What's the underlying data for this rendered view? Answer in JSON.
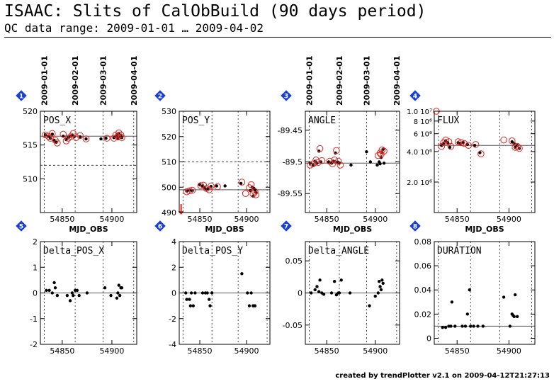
{
  "header": {
    "title": "ISAAC: Slits of CalObBuild (90 days period)",
    "subtitle": "QC data range: 2009-01-01 … 2009-04-02"
  },
  "footer": {
    "text": "created by trendPlotter v2.1 on 2009-04-12T21:27:13"
  },
  "colors": {
    "badge": "#1a3fd6",
    "outlier": "#e0261e",
    "frame": "#000000"
  },
  "chart_data": [
    {
      "type": "scatter",
      "badge": "1",
      "title": "POS_X",
      "xlabel": "MJD_OBS",
      "xlim": [
        54828,
        54925
      ],
      "ylim": [
        505,
        520
      ],
      "xticks": [
        54850,
        54900
      ],
      "yticks": [
        510,
        515,
        520
      ],
      "dates": [
        "2009-01-01",
        "2009-02-01",
        "2009-03-01",
        "2009-04-01"
      ],
      "dates_mjd": [
        54832,
        54863,
        54891,
        54922
      ],
      "ref_line": 516.3,
      "thresholds": [
        512,
        520
      ],
      "points": [
        [
          54833,
          516.5
        ],
        [
          54836,
          516.3
        ],
        [
          54838,
          516.0
        ],
        [
          54840,
          516.6
        ],
        [
          54842,
          515.7
        ],
        [
          54844,
          515.4
        ],
        [
          54851,
          516.3
        ],
        [
          54854,
          515.8
        ],
        [
          54856,
          516.1
        ],
        [
          54858,
          516.3
        ],
        [
          54860,
          516.4
        ],
        [
          54862,
          516.2
        ],
        [
          54868,
          516.2
        ],
        [
          54874,
          515.9
        ],
        [
          54889,
          515.9
        ],
        [
          54894,
          516.0
        ],
        [
          54902,
          516.1
        ],
        [
          54904,
          516.3
        ],
        [
          54905,
          516.5
        ],
        [
          54906,
          516.0
        ],
        [
          54907,
          516.7
        ],
        [
          54908,
          516.3
        ],
        [
          54909,
          516.4
        ],
        [
          54910,
          516.1
        ]
      ],
      "circles": [
        [
          54833,
          516.5
        ],
        [
          54836,
          516.3
        ],
        [
          54838,
          516.0
        ],
        [
          54840,
          516.7
        ],
        [
          54843,
          515.7
        ],
        [
          54845,
          515.3
        ],
        [
          54851,
          516.6
        ],
        [
          54854,
          515.6
        ],
        [
          54856,
          516.0
        ],
        [
          54859,
          516.3
        ],
        [
          54861,
          516.7
        ],
        [
          54864,
          516.1
        ],
        [
          54868,
          516.4
        ],
        [
          54874,
          515.9
        ],
        [
          54895,
          516.0
        ],
        [
          54902,
          516.0
        ],
        [
          54904,
          516.5
        ],
        [
          54906,
          516.2
        ],
        [
          54907,
          516.8
        ],
        [
          54909,
          516.5
        ],
        [
          54910,
          516.1
        ]
      ]
    },
    {
      "type": "scatter",
      "badge": "2",
      "title": "POS_Y",
      "xlabel": "MJD_OBS",
      "xlim": [
        54828,
        54925
      ],
      "ylim": [
        490,
        530
      ],
      "xticks": [
        54850,
        54900
      ],
      "yticks": [
        490,
        500,
        510,
        520,
        530
      ],
      "dates_mjd": [
        54832,
        54863,
        54891,
        54922
      ],
      "ref_line": 499,
      "thresholds": [
        510
      ],
      "points": [
        [
          54836,
          498.5
        ],
        [
          54839,
          498.8
        ],
        [
          54842,
          498.6
        ],
        [
          54850,
          501.0
        ],
        [
          54853,
          500.5
        ],
        [
          54855,
          499.8
        ],
        [
          54857,
          499.2
        ],
        [
          54859,
          499.5
        ],
        [
          54862,
          500.3
        ],
        [
          54868,
          500.5
        ],
        [
          54877,
          500.5
        ],
        [
          54894,
          501.5
        ],
        [
          54904,
          498.7
        ],
        [
          54906,
          500.0
        ],
        [
          54907,
          496.5
        ],
        [
          54908,
          499.5
        ],
        [
          54909,
          499.0
        ],
        [
          54910,
          498.0
        ]
      ],
      "circles": [
        [
          54836,
          498.2
        ],
        [
          54839,
          498.6
        ],
        [
          54842,
          498.8
        ],
        [
          54851,
          500.6
        ],
        [
          54854,
          500.8
        ],
        [
          54857,
          499.5
        ],
        [
          54860,
          499.0
        ],
        [
          54862,
          500.5
        ],
        [
          54869,
          500.2
        ],
        [
          54895,
          502.0
        ],
        [
          54899,
          497.5
        ],
        [
          54903,
          499.8
        ],
        [
          54905,
          501.0
        ],
        [
          54907,
          497.3
        ],
        [
          54909,
          498.2
        ],
        [
          54910,
          497.0
        ]
      ],
      "arrows": [
        [
          54830,
          490
        ]
      ]
    },
    {
      "type": "scatter",
      "badge": "3",
      "title": "ANGLE",
      "xlabel": "MJD_OBS",
      "xlim": [
        54828,
        54925
      ],
      "ylim": [
        -89.58,
        -89.42
      ],
      "xticks": [
        54850,
        54900
      ],
      "yticks": [
        -89.45,
        -89.5,
        -89.55
      ],
      "dates": [
        "2009-01-01",
        "2009-02-01",
        "2009-03-01",
        "2009-04-01"
      ],
      "dates_mjd": [
        54832,
        54863,
        54891,
        54922
      ],
      "ref_line": -89.502,
      "points": [
        [
          54833,
          -89.502
        ],
        [
          54836,
          -89.505
        ],
        [
          54838,
          -89.499
        ],
        [
          54840,
          -89.502
        ],
        [
          54842,
          -89.483
        ],
        [
          54844,
          -89.5
        ],
        [
          54852,
          -89.5
        ],
        [
          54855,
          -89.502
        ],
        [
          54857,
          -89.499
        ],
        [
          54859,
          -89.486
        ],
        [
          54861,
          -89.5
        ],
        [
          54863,
          -89.502
        ],
        [
          54875,
          -89.505
        ],
        [
          54891,
          -89.484
        ],
        [
          54895,
          -89.5
        ],
        [
          54902,
          -89.505
        ],
        [
          54904,
          -89.5
        ],
        [
          54905,
          -89.503
        ],
        [
          54906,
          -89.493
        ],
        [
          54907,
          -89.485
        ],
        [
          54908,
          -89.48
        ],
        [
          54909,
          -89.502
        ]
      ],
      "circles": [
        [
          54833,
          -89.505
        ],
        [
          54836,
          -89.503
        ],
        [
          54839,
          -89.497
        ],
        [
          54841,
          -89.501
        ],
        [
          54843,
          -89.479
        ],
        [
          54845,
          -89.498
        ],
        [
          54853,
          -89.499
        ],
        [
          54856,
          -89.503
        ],
        [
          54858,
          -89.497
        ],
        [
          54860,
          -89.482
        ],
        [
          54862,
          -89.499
        ],
        [
          54864,
          -89.505
        ],
        [
          54903,
          -89.49
        ],
        [
          54905,
          -89.486
        ],
        [
          54906,
          -89.488
        ],
        [
          54907,
          -89.481
        ],
        [
          54909,
          -89.483
        ]
      ]
    },
    {
      "type": "scatter",
      "badge": "4",
      "title": "FLUX",
      "xlabel": "MJD_OBS",
      "xlim": [
        54828,
        54925
      ],
      "ylim": [
        1000000,
        10000000
      ],
      "xticks": [
        54850,
        54900
      ],
      "yticks": [
        1000000,
        2000000,
        4000000,
        6000000,
        8000000,
        10000000
      ],
      "ytick_labels": [
        "1.0 10⁷",
        "8 10⁶",
        "6 10⁶",
        "4.0 10⁶",
        "2.0 10⁶"
      ],
      "dates_mjd": [
        54832,
        54863,
        54891,
        54922
      ],
      "ref_line": 4600000,
      "points": [
        [
          54835,
          4600000
        ],
        [
          54837,
          4800000
        ],
        [
          54839,
          5100000
        ],
        [
          54841,
          4900000
        ],
        [
          54843,
          4400000
        ],
        [
          54851,
          4900000
        ],
        [
          54853,
          4800000
        ],
        [
          54856,
          4900000
        ],
        [
          54860,
          4700000
        ],
        [
          54867,
          4600000
        ],
        [
          54872,
          3900000
        ],
        [
          54903,
          5000000
        ],
        [
          54905,
          4800000
        ],
        [
          54906,
          4400000
        ],
        [
          54908,
          4600000
        ],
        [
          54910,
          4300000
        ]
      ],
      "circles": [
        [
          54835,
          4500000
        ],
        [
          54837,
          4900000
        ],
        [
          54839,
          5200000
        ],
        [
          54842,
          5000000
        ],
        [
          54844,
          4500000
        ],
        [
          54851,
          5000000
        ],
        [
          54854,
          4900000
        ],
        [
          54857,
          4800000
        ],
        [
          54861,
          4600000
        ],
        [
          54868,
          4700000
        ],
        [
          54873,
          3800000
        ],
        [
          54895,
          5200000
        ],
        [
          54903,
          5100000
        ],
        [
          54906,
          4400000
        ],
        [
          54908,
          4500000
        ],
        [
          54910,
          4300000
        ],
        [
          54830,
          10000000
        ]
      ]
    },
    {
      "type": "scatter",
      "badge": "5",
      "title": "Delta_POS_X",
      "xlim": [
        54828,
        54925
      ],
      "ylim": [
        -2,
        2
      ],
      "xticks": [
        54850,
        54900
      ],
      "yticks": [
        2,
        1,
        0,
        -1,
        -2
      ],
      "dates_mjd": [
        54832,
        54863,
        54891,
        54922
      ],
      "ref_line": 0,
      "points": [
        [
          54834,
          0.1
        ],
        [
          54837,
          0.1
        ],
        [
          54840,
          0.0
        ],
        [
          54842,
          0.4
        ],
        [
          54843,
          0.2
        ],
        [
          54845,
          -0.1
        ],
        [
          54855,
          -0.1
        ],
        [
          54858,
          -0.3
        ],
        [
          54860,
          0.0
        ],
        [
          54861,
          -0.1
        ],
        [
          54863,
          0.1
        ],
        [
          54865,
          0.1
        ],
        [
          54867,
          -0.1
        ],
        [
          54875,
          0.0
        ],
        [
          54893,
          0.2
        ],
        [
          54899,
          -0.1
        ],
        [
          54905,
          -0.2
        ],
        [
          54906,
          0.0
        ],
        [
          54907,
          0.3
        ],
        [
          54908,
          -0.1
        ],
        [
          54909,
          0.2
        ],
        [
          54910,
          0.2
        ]
      ]
    },
    {
      "type": "scatter",
      "badge": "6",
      "title": "Delta_POS_Y",
      "xlim": [
        54828,
        54925
      ],
      "ylim": [
        -4,
        4
      ],
      "xticks": [
        54850,
        54900
      ],
      "yticks": [
        4,
        2,
        0,
        -2,
        -4
      ],
      "dates_mjd": [
        54832,
        54863,
        54891,
        54922
      ],
      "ref_line": 0,
      "points": [
        [
          54835,
          0.0
        ],
        [
          54836,
          -0.5
        ],
        [
          54839,
          -0.5
        ],
        [
          54840,
          -1.0
        ],
        [
          54841,
          0.0
        ],
        [
          54843,
          -1.0
        ],
        [
          54845,
          0.0
        ],
        [
          54853,
          0.0
        ],
        [
          54856,
          0.0
        ],
        [
          54858,
          0.0
        ],
        [
          54860,
          -0.5
        ],
        [
          54861,
          -1.0
        ],
        [
          54863,
          0.0
        ],
        [
          54895,
          1.5
        ],
        [
          54901,
          0.0
        ],
        [
          54903,
          -1.0
        ],
        [
          54905,
          0.0
        ],
        [
          54907,
          -1.0
        ],
        [
          54909,
          -1.0
        ]
      ]
    },
    {
      "type": "scatter",
      "badge": "7",
      "title": "Delta_ANGLE",
      "xlim": [
        54828,
        54925
      ],
      "ylim": [
        -0.08,
        0.08
      ],
      "xticks": [
        54850,
        54900
      ],
      "yticks": [
        0.05,
        0,
        -0.05
      ],
      "dates_mjd": [
        54832,
        54863,
        54891,
        54922
      ],
      "ref_line": 0,
      "points": [
        [
          54834,
          0.0
        ],
        [
          54838,
          0.005
        ],
        [
          54840,
          0.01
        ],
        [
          54842,
          0.002
        ],
        [
          54843,
          0.02
        ],
        [
          54845,
          0.0
        ],
        [
          54847,
          -0.002
        ],
        [
          54855,
          0.0
        ],
        [
          54858,
          0.018
        ],
        [
          54860,
          -0.003
        ],
        [
          54862,
          0.0
        ],
        [
          54863,
          0.0
        ],
        [
          54865,
          0.02
        ],
        [
          54874,
          0.0
        ],
        [
          54894,
          -0.02
        ],
        [
          54900,
          -0.005
        ],
        [
          54903,
          0.0
        ],
        [
          54904,
          0.018
        ],
        [
          54905,
          0.01
        ],
        [
          54906,
          0.005
        ],
        [
          54907,
          0.02
        ],
        [
          54908,
          0.015
        ]
      ]
    },
    {
      "type": "scatter",
      "badge": "8",
      "title": "DURATION",
      "xlim": [
        54828,
        54925
      ],
      "ylim": [
        -0.005,
        0.08
      ],
      "xticks": [
        54850,
        54900
      ],
      "yticks": [
        0.08,
        0.06,
        0.04,
        0.02,
        0
      ],
      "dates_mjd": [
        54832,
        54863,
        54891,
        54922
      ],
      "ref_line": 0.01,
      "points": [
        [
          54836,
          0.009
        ],
        [
          54839,
          0.009
        ],
        [
          54842,
          0.01
        ],
        [
          54844,
          0.01
        ],
        [
          54845,
          0.03
        ],
        [
          54848,
          0.01
        ],
        [
          54855,
          0.01
        ],
        [
          54858,
          0.01
        ],
        [
          54860,
          0.02
        ],
        [
          54862,
          0.04
        ],
        [
          54863,
          0.01
        ],
        [
          54866,
          0.01
        ],
        [
          54870,
          0.01
        ],
        [
          54875,
          0.01
        ],
        [
          54895,
          0.034
        ],
        [
          54901,
          0.01
        ],
        [
          54903,
          0.02
        ],
        [
          54904,
          0.019
        ],
        [
          54905,
          0.018
        ],
        [
          54906,
          0.036
        ],
        [
          54908,
          0.018
        ]
      ]
    }
  ]
}
